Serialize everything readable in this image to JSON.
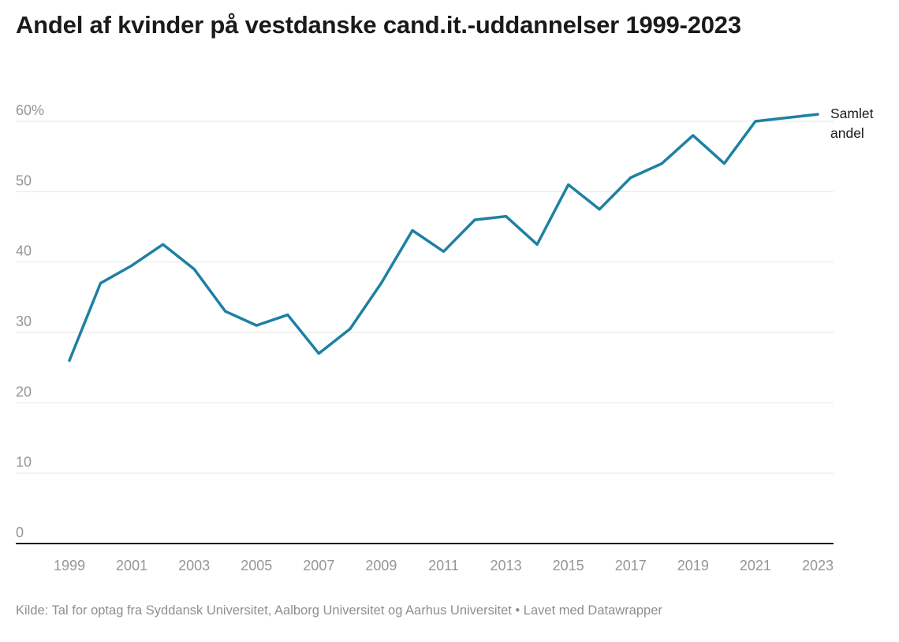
{
  "title": "Andel af kvinder på vestdanske cand.it.-uddannelser 1999-2023",
  "annotation_label": "Samlet andel",
  "footer": "Kilde: Tal for optag fra Syddansk Universitet, Aalborg Universitet og Aarhus Universitet • Lavet med Datawrapper",
  "colors": {
    "line": "#1d81a2",
    "grid": "#e6e6e6",
    "axis": "#1a1a1a",
    "tick_text": "#969696",
    "title_text": "#1a1a1a",
    "footer_text": "#8f8f8f",
    "background": "#ffffff"
  },
  "chart_data": {
    "type": "line",
    "title": "Andel af kvinder på vestdanske cand.it.-uddannelser 1999-2023",
    "series": [
      {
        "name": "Samlet andel",
        "x": [
          1999,
          2000,
          2001,
          2002,
          2003,
          2004,
          2005,
          2006,
          2007,
          2008,
          2009,
          2010,
          2011,
          2012,
          2013,
          2014,
          2015,
          2016,
          2017,
          2018,
          2019,
          2020,
          2021,
          2022,
          2023
        ],
        "values": [
          26,
          37,
          39.5,
          42.5,
          39,
          33,
          31,
          32.5,
          27,
          30.5,
          37,
          44.5,
          41.5,
          46,
          46.5,
          42.5,
          51,
          47.5,
          52,
          54,
          58,
          54,
          60,
          60.5,
          61
        ]
      }
    ],
    "xlabel": "",
    "ylabel": "",
    "unit": "%",
    "ylim": [
      0,
      60
    ],
    "x_tick_labels": [
      "1999",
      "2001",
      "2003",
      "2005",
      "2007",
      "2009",
      "2011",
      "2013",
      "2015",
      "2017",
      "2019",
      "2021",
      "2023"
    ],
    "y_ticks": [
      0,
      10,
      20,
      30,
      40,
      50,
      60
    ],
    "y_tick_labels": [
      "0",
      "10",
      "20",
      "30",
      "40",
      "50",
      "60%"
    ],
    "grid": "horizontal",
    "legend_position": "end-of-line-label"
  }
}
